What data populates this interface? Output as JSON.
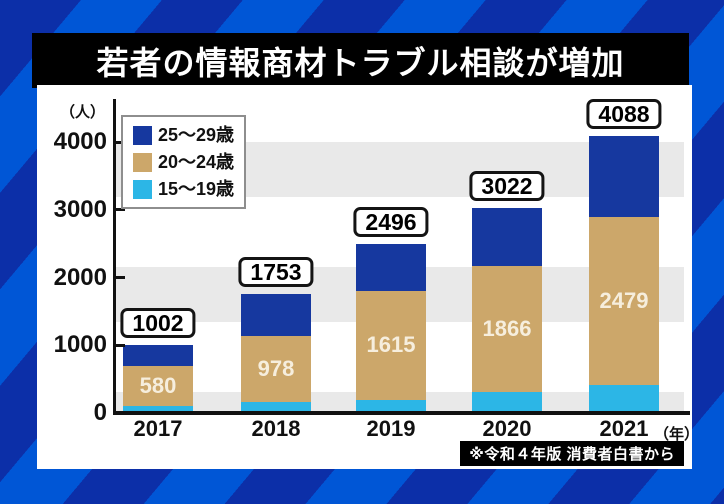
{
  "title": "若者の情報商材トラブル相談が増加",
  "source_note": "※令和４年版 消費者白書から",
  "y_axis": {
    "unit_label": "（人）",
    "ticks": [
      "4000",
      "3000",
      "2000",
      "1000",
      "0"
    ]
  },
  "x_axis": {
    "unit_label": "（年）"
  },
  "legend": [
    {
      "label": "25～29歳",
      "color": "#16389f"
    },
    {
      "label": "20～24歳",
      "color": "#cca76a"
    },
    {
      "label": "15～19歳",
      "color": "#2cb6e6"
    }
  ],
  "chart_data": {
    "type": "bar",
    "stacked": true,
    "title": "若者の情報商材トラブル相談が増加",
    "categories": [
      "2017",
      "2018",
      "2019",
      "2020",
      "2021"
    ],
    "series": [
      {
        "name": "15～19歳",
        "color": "#2cb6e6",
        "values": [
          110,
          160,
          190,
          310,
          410
        ],
        "estimated": true
      },
      {
        "name": "20～24歳",
        "color": "#cca76a",
        "values": [
          580,
          978,
          1615,
          1866,
          2479
        ],
        "estimated": false
      },
      {
        "name": "25～29歳",
        "color": "#16389f",
        "values": [
          312,
          615,
          691,
          846,
          1199
        ],
        "estimated": true
      }
    ],
    "totals": [
      1002,
      1753,
      2496,
      3022,
      4088
    ],
    "segment_labels_series": "20～24歳",
    "ylabel": "（人）",
    "xlabel": "（年）",
    "ylim": [
      0,
      4000
    ],
    "grid": "horizontal-bands",
    "legend_position": "top-left"
  },
  "colors": {
    "background_stripe_dark": "#0c2fa8",
    "background_stripe_light": "#0056d6",
    "panel": "#ffffff",
    "band": "#e9e9e9",
    "axis": "#111111",
    "title_bar": "#000000",
    "title_text": "#ffffff",
    "segment_value_text": "#f6eedd"
  }
}
